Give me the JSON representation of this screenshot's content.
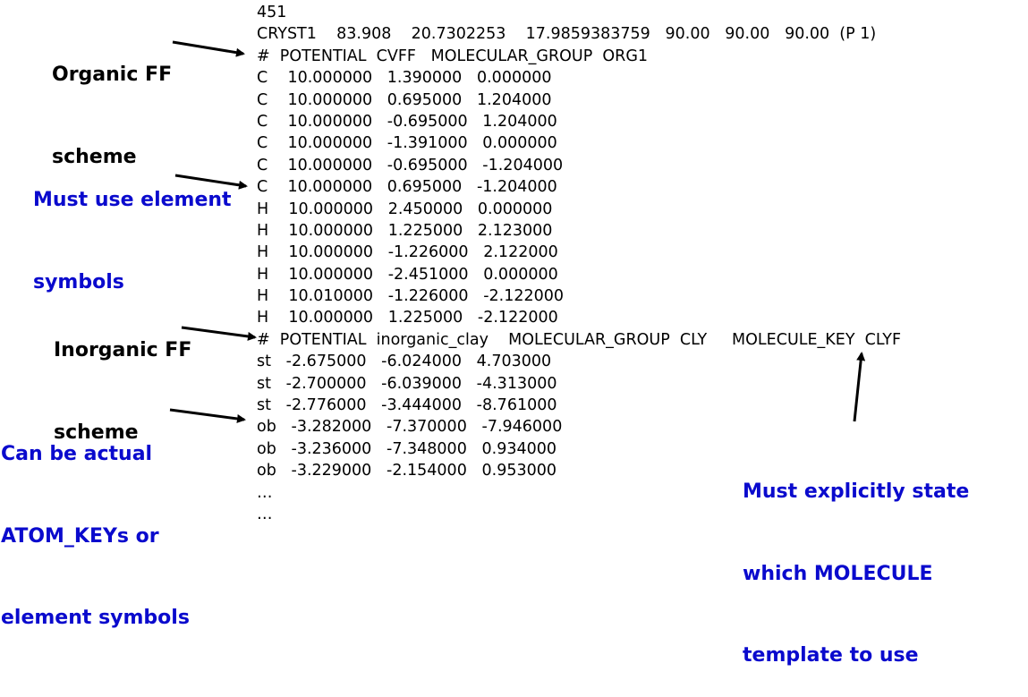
{
  "code_lines": [
    "451",
    "CRYST1    83.908    20.7302253    17.9859383759   90.00   90.00   90.00  (P 1)",
    "#  POTENTIAL  CVFF   MOLECULAR_GROUP  ORG1",
    "C    10.000000   1.390000   0.000000",
    "C    10.000000   0.695000   1.204000",
    "C    10.000000   -0.695000   1.204000",
    "C    10.000000   -1.391000   0.000000",
    "C    10.000000   -0.695000   -1.204000",
    "C    10.000000   0.695000   -1.204000",
    "H    10.000000   2.450000   0.000000",
    "H    10.000000   1.225000   2.123000",
    "H    10.000000   -1.226000   2.122000",
    "H    10.000000   -2.451000   0.000000",
    "H    10.010000   -1.226000   -2.122000",
    "H    10.000000   1.225000   -2.122000",
    "#  POTENTIAL  inorganic_clay    MOLECULAR_GROUP  CLY     MOLECULE_KEY  CLYF",
    "st   -2.675000   -6.024000   4.703000",
    "st   -2.700000   -6.039000   -4.313000",
    "st   -2.776000   -3.444000   -8.761000",
    "ob   -3.282000   -7.370000   -7.946000",
    "ob   -3.236000   -7.348000   0.934000",
    "ob   -3.229000   -2.154000   0.953000",
    "…",
    "…"
  ],
  "annotations": {
    "organic_ff": [
      "Organic FF",
      "scheme"
    ],
    "element_symbols": [
      "Must use element",
      "symbols"
    ],
    "inorganic_ff": [
      "Inorganic FF",
      "scheme"
    ],
    "atom_keys": [
      "Can be actual",
      "ATOM_KEYs or",
      "element symbols"
    ],
    "molecule_template": [
      "Must explicitly state",
      "which MOLECULE",
      "template to use"
    ]
  },
  "colors": {
    "text": "#000000",
    "annotation_blue": "#0a0acd",
    "arrow": "#000000"
  }
}
